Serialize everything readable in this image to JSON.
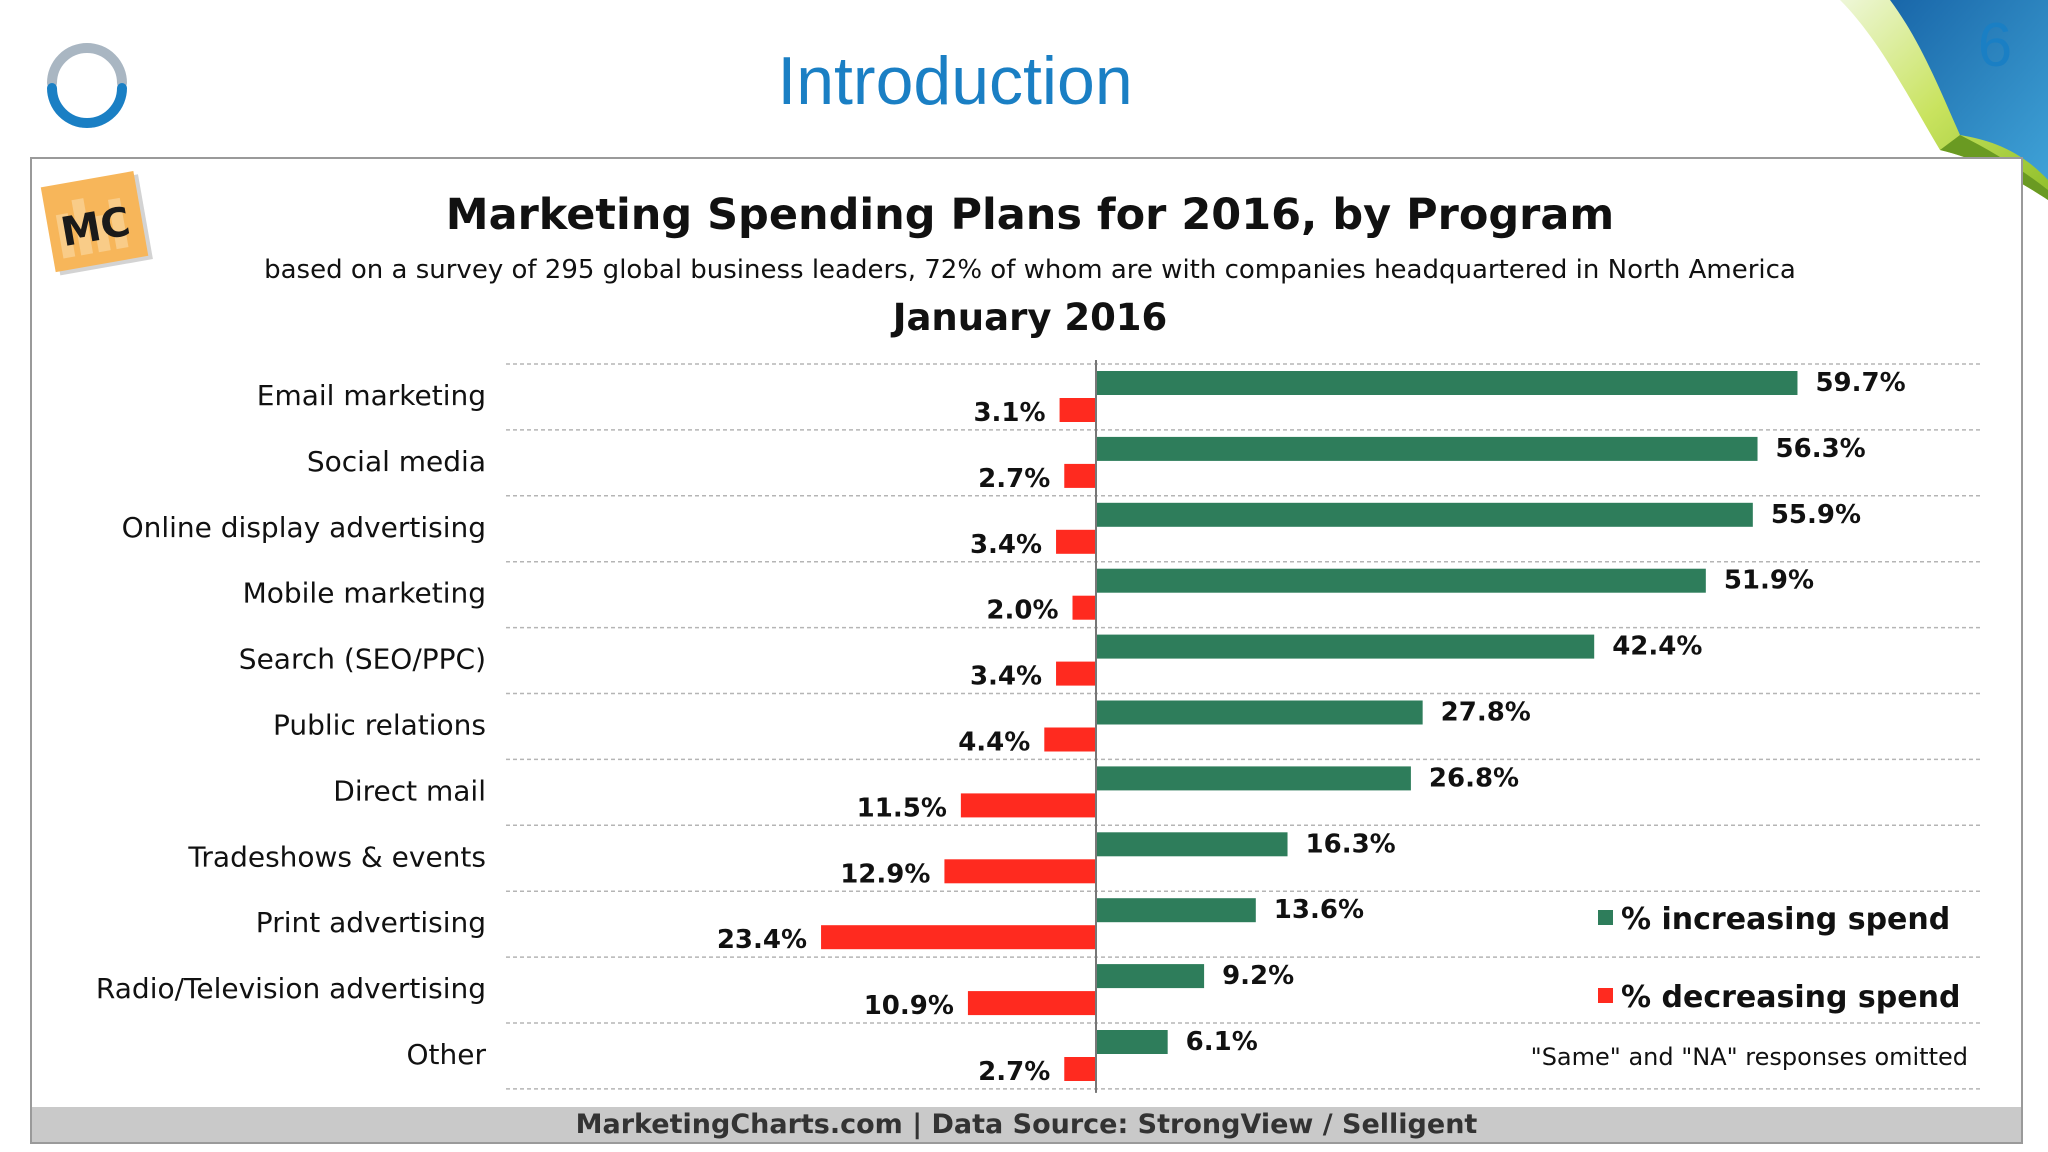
{
  "slide": {
    "title": "Introduction",
    "page_number": "6"
  },
  "badge": {
    "text": "MC"
  },
  "colors": {
    "increase": "#2e7d5b",
    "decrease": "#ff2a1f",
    "title_blue": "#1a7fc4"
  },
  "legend": {
    "increase_label": "% increasing spend",
    "decrease_label": "% decreasing spend"
  },
  "footnote": "\"Same\" and \"NA\" responses omitted",
  "source": "MarketingCharts.com | Data Source: StrongView / Selligent",
  "chart_data": {
    "type": "bar",
    "orientation": "horizontal-diverging",
    "title": "Marketing Spending Plans for 2016, by Program",
    "subtitle": "based on a survey of 295 global business leaders, 72% of whom are with companies headquartered in North America",
    "date": "January 2016",
    "categories": [
      "Email marketing",
      "Social media",
      "Online display advertising",
      "Mobile marketing",
      "Search (SEO/PPC)",
      "Public relations",
      "Direct mail",
      "Tradeshows & events",
      "Print advertising",
      "Radio/Television advertising",
      "Other"
    ],
    "series": [
      {
        "name": "% increasing spend",
        "values": [
          59.7,
          56.3,
          55.9,
          51.9,
          42.4,
          27.8,
          26.8,
          16.3,
          13.6,
          9.2,
          6.1
        ],
        "labels": [
          "59.7%",
          "56.3%",
          "55.9%",
          "51.9%",
          "42.4%",
          "27.8%",
          "26.8%",
          "16.3%",
          "13.6%",
          "9.2%",
          "6.1%"
        ]
      },
      {
        "name": "% decreasing spend",
        "values": [
          3.1,
          2.7,
          3.4,
          2.0,
          3.4,
          4.4,
          11.5,
          12.9,
          23.4,
          10.9,
          2.7
        ],
        "labels": [
          "3.1%",
          "2.7%",
          "3.4%",
          "2.0%",
          "3.4%",
          "4.4%",
          "11.5%",
          "12.9%",
          "23.4%",
          "10.9%",
          "2.7%"
        ]
      }
    ],
    "unit": "%",
    "grid": "dashed horizontal separators",
    "legend_position": "bottom-right"
  }
}
